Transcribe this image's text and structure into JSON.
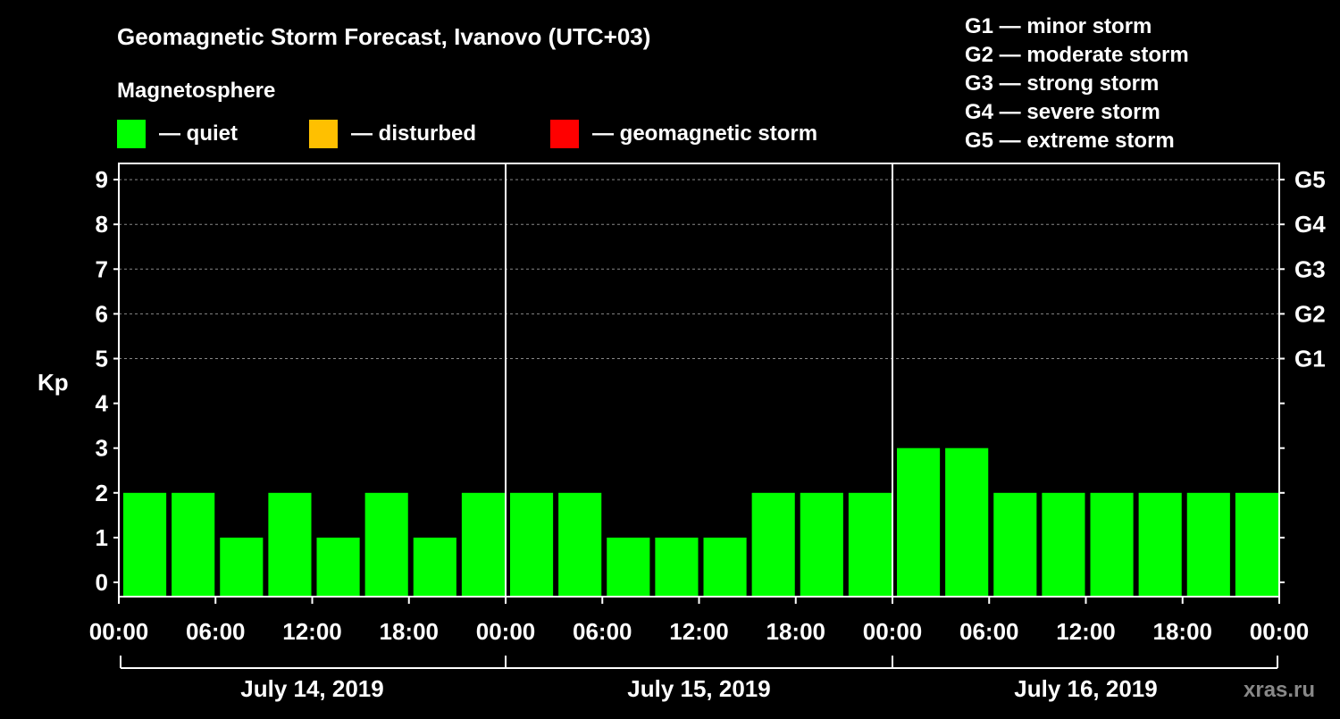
{
  "chart_data": {
    "type": "bar",
    "title": "Geomagnetic Storm Forecast, Ivanovo (UTC+03)",
    "legend_title": "Magnetosphere",
    "legend": [
      {
        "label": "— quiet",
        "color": "#00ff00"
      },
      {
        "label": "— disturbed",
        "color": "#ffc000"
      },
      {
        "label": "— geomagnetic storm",
        "color": "#ff0000"
      }
    ],
    "scale_legend": [
      "G1 — minor storm",
      "G2 — moderate storm",
      "G3 — strong storm",
      "G4 — severe storm",
      "G5 — extreme storm"
    ],
    "ylabel": "Kp",
    "ylim": [
      0,
      9
    ],
    "yticks": [
      "0",
      "1",
      "2",
      "3",
      "4",
      "5",
      "6",
      "7",
      "8",
      "9"
    ],
    "right_ticks": [
      {
        "kp": 5,
        "label": "G1"
      },
      {
        "kp": 6,
        "label": "G2"
      },
      {
        "kp": 7,
        "label": "G3"
      },
      {
        "kp": 8,
        "label": "G4"
      },
      {
        "kp": 9,
        "label": "G5"
      }
    ],
    "xticks": [
      "00:00",
      "06:00",
      "12:00",
      "18:00",
      "00:00",
      "06:00",
      "12:00",
      "18:00",
      "00:00",
      "06:00",
      "12:00",
      "18:00",
      "00:00"
    ],
    "days": [
      "July 14, 2019",
      "July 15, 2019",
      "July 16, 2019"
    ],
    "interval_hours": 3,
    "values": [
      2,
      2,
      1,
      2,
      1,
      2,
      1,
      2,
      2,
      2,
      1,
      1,
      1,
      2,
      2,
      2,
      3,
      3,
      2,
      2,
      2,
      2,
      2,
      2
    ],
    "bar_color": "#00ff00",
    "grid": "dashed at 5-9",
    "watermark": "xras.ru"
  }
}
